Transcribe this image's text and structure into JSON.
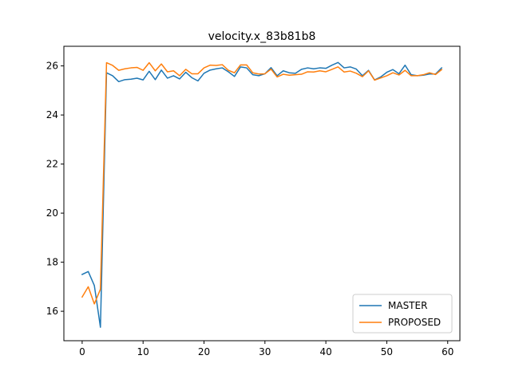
{
  "chart_data": {
    "type": "line",
    "title": "velocity.x_83b81b8",
    "xlabel": "",
    "ylabel": "",
    "xlim": [
      -3,
      62
    ],
    "ylim": [
      14.8,
      26.8
    ],
    "xticks": [
      0,
      10,
      20,
      30,
      40,
      50,
      60
    ],
    "yticks": [
      16,
      18,
      20,
      22,
      24,
      26
    ],
    "grid": false,
    "legend_position": "lower-right",
    "series": [
      {
        "name": "MASTER",
        "color": "#1f77b4",
        "x": [
          0,
          1,
          2,
          3,
          4,
          5,
          6,
          7,
          8,
          9,
          10,
          11,
          12,
          13,
          14,
          15,
          16,
          17,
          18,
          19,
          20,
          21,
          22,
          23,
          24,
          25,
          26,
          27,
          28,
          29,
          30,
          31,
          32,
          33,
          34,
          35,
          36,
          37,
          38,
          39,
          40,
          41,
          42,
          43,
          44,
          45,
          46,
          47,
          48,
          49,
          50,
          51,
          52,
          53,
          54,
          55,
          56,
          57,
          58,
          59
        ],
        "values": [
          17.5,
          17.62,
          17.05,
          15.35,
          25.72,
          25.6,
          25.36,
          25.44,
          25.46,
          25.5,
          25.43,
          25.78,
          25.44,
          25.83,
          25.5,
          25.6,
          25.47,
          25.74,
          25.52,
          25.39,
          25.7,
          25.83,
          25.88,
          25.92,
          25.76,
          25.57,
          25.96,
          25.92,
          25.64,
          25.6,
          25.68,
          25.93,
          25.6,
          25.8,
          25.72,
          25.7,
          25.86,
          25.92,
          25.88,
          25.92,
          25.9,
          26.03,
          26.14,
          25.92,
          25.96,
          25.87,
          25.6,
          25.82,
          25.43,
          25.55,
          25.74,
          25.85,
          25.68,
          26.03,
          25.64,
          25.6,
          25.62,
          25.67,
          25.67,
          25.92
        ]
      },
      {
        "name": "PROPOSED",
        "color": "#ff7f0e",
        "x": [
          0,
          1,
          2,
          3,
          4,
          5,
          6,
          7,
          8,
          9,
          10,
          11,
          12,
          13,
          14,
          15,
          16,
          17,
          18,
          19,
          20,
          21,
          22,
          23,
          24,
          25,
          26,
          27,
          28,
          29,
          30,
          31,
          32,
          33,
          34,
          35,
          36,
          37,
          38,
          39,
          40,
          41,
          42,
          43,
          44,
          45,
          46,
          47,
          48,
          49,
          50,
          51,
          52,
          53,
          54,
          55,
          56,
          57,
          58,
          59
        ],
        "values": [
          16.58,
          17.0,
          16.3,
          16.9,
          26.13,
          26.02,
          25.82,
          25.88,
          25.92,
          25.94,
          25.82,
          26.13,
          25.8,
          26.08,
          25.76,
          25.8,
          25.6,
          25.86,
          25.68,
          25.68,
          25.92,
          26.03,
          26.02,
          26.05,
          25.82,
          25.72,
          26.04,
          26.04,
          25.72,
          25.67,
          25.68,
          25.87,
          25.55,
          25.66,
          25.62,
          25.64,
          25.66,
          25.76,
          25.75,
          25.8,
          25.76,
          25.86,
          25.96,
          25.75,
          25.79,
          25.7,
          25.56,
          25.8,
          25.42,
          25.51,
          25.6,
          25.72,
          25.63,
          25.82,
          25.6,
          25.6,
          25.64,
          25.72,
          25.65,
          25.85
        ]
      }
    ]
  }
}
